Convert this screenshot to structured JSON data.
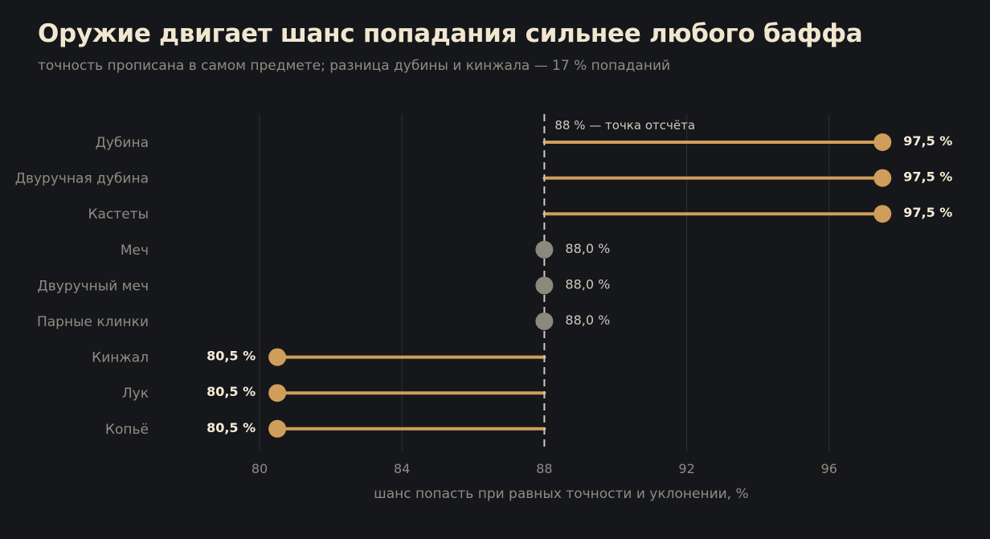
{
  "header": {
    "title": "Оружие двигает шанс попадания сильнее любого баффа",
    "subtitle": "точность прописана в самом предмете; разница дубины и кинжала — 17 % попаданий"
  },
  "colors": {
    "background": "#16171b",
    "accent": "#cf9e5b",
    "neutral": "#8c887c",
    "reference_line": "#cfcabe"
  },
  "chart_data": {
    "type": "lollipop",
    "baseline": 88,
    "baseline_label": "88 % — точка отсчёта",
    "xlabel": "шанс попасть при равных точности и уклонении, %",
    "xlim": [
      80,
      98.5
    ],
    "xticks": [
      80,
      84,
      88,
      92,
      96
    ],
    "grid": true,
    "categories": [
      "Дубина",
      "Двуручная дубина",
      "Кастеты",
      "Меч",
      "Двуручный меч",
      "Парные клинки",
      "Кинжал",
      "Лук",
      "Копьё"
    ],
    "values": [
      97.5,
      97.5,
      97.5,
      88.0,
      88.0,
      88.0,
      80.5,
      80.5,
      80.5
    ],
    "value_labels": [
      "97,5 %",
      "97,5 %",
      "97,5 %",
      "88,0 %",
      "88,0 %",
      "88,0 %",
      "80,5 %",
      "80,5 %",
      "80,5 %"
    ]
  }
}
